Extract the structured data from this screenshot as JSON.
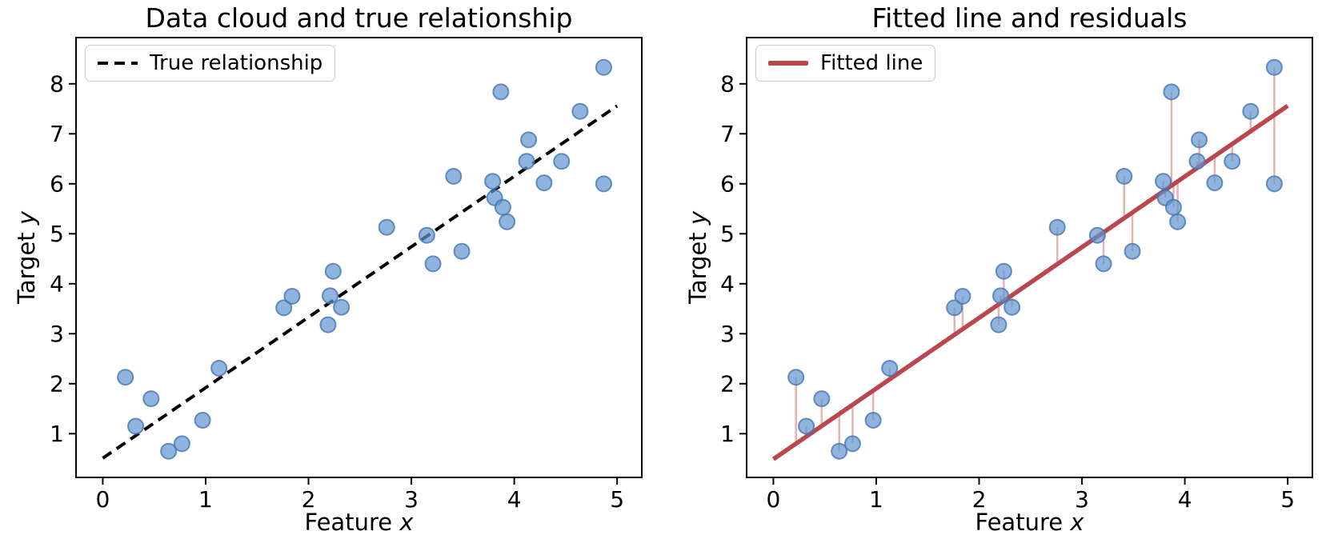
{
  "figure": {
    "background": "#ffffff",
    "marker_fill": "rgba(96,148,208,0.70)",
    "marker_edge": "rgba(70,118,176,0.80)",
    "axis_color": "#000000"
  },
  "chart_data": [
    {
      "type": "scatter",
      "title": "Data cloud and true relationship",
      "xlabel": "Feature x",
      "ylabel": "Target y",
      "xlabel_parts": {
        "text": "Feature ",
        "var": "x"
      },
      "ylabel_parts": {
        "text": "Target ",
        "var": "y"
      },
      "xlim": [
        -0.26,
        5.24
      ],
      "ylim": [
        0.125,
        8.925
      ],
      "xticks": [
        0,
        1,
        2,
        3,
        4,
        5
      ],
      "yticks": [
        1,
        2,
        3,
        4,
        5,
        6,
        7,
        8
      ],
      "grid": false,
      "legend": {
        "label": "True relationship",
        "position": "upper left",
        "sample": "dashed-black-line"
      },
      "marker_color": "#6094d0",
      "points": [
        [
          0.22,
          2.13
        ],
        [
          0.32,
          1.15
        ],
        [
          0.47,
          1.7
        ],
        [
          0.64,
          0.65
        ],
        [
          0.77,
          0.8
        ],
        [
          0.97,
          1.27
        ],
        [
          1.13,
          2.31
        ],
        [
          1.76,
          3.52
        ],
        [
          1.84,
          3.75
        ],
        [
          2.19,
          3.18
        ],
        [
          2.21,
          3.76
        ],
        [
          2.24,
          4.25
        ],
        [
          2.32,
          3.53
        ],
        [
          2.76,
          5.13
        ],
        [
          3.15,
          4.97
        ],
        [
          3.21,
          4.4
        ],
        [
          3.41,
          6.15
        ],
        [
          3.49,
          4.65
        ],
        [
          3.79,
          6.05
        ],
        [
          3.81,
          5.72
        ],
        [
          3.87,
          7.84
        ],
        [
          3.89,
          5.53
        ],
        [
          3.93,
          5.24
        ],
        [
          4.12,
          6.45
        ],
        [
          4.14,
          6.88
        ],
        [
          4.29,
          6.02
        ],
        [
          4.46,
          6.45
        ],
        [
          4.64,
          7.45
        ],
        [
          4.87,
          8.33
        ],
        [
          4.87,
          6.0
        ]
      ],
      "line": {
        "label": "True relationship",
        "style": "dashed",
        "color": "#000000",
        "slope": 1.41,
        "intercept": 0.51,
        "x_range": [
          0,
          5
        ]
      }
    },
    {
      "type": "scatter",
      "title": "Fitted line and residuals",
      "xlabel": "Feature x",
      "ylabel": "Target y",
      "xlabel_parts": {
        "text": "Feature ",
        "var": "x"
      },
      "ylabel_parts": {
        "text": "Target ",
        "var": "y"
      },
      "xlim": [
        -0.26,
        5.24
      ],
      "ylim": [
        0.125,
        8.925
      ],
      "xticks": [
        0,
        1,
        2,
        3,
        4,
        5
      ],
      "yticks": [
        1,
        2,
        3,
        4,
        5,
        6,
        7,
        8
      ],
      "grid": false,
      "legend": {
        "label": "Fitted line",
        "position": "upper left",
        "sample": "solid-red-line"
      },
      "marker_color": "#6094d0",
      "points": [
        [
          0.22,
          2.13
        ],
        [
          0.32,
          1.15
        ],
        [
          0.47,
          1.7
        ],
        [
          0.64,
          0.65
        ],
        [
          0.77,
          0.8
        ],
        [
          0.97,
          1.27
        ],
        [
          1.13,
          2.31
        ],
        [
          1.76,
          3.52
        ],
        [
          1.84,
          3.75
        ],
        [
          2.19,
          3.18
        ],
        [
          2.21,
          3.76
        ],
        [
          2.24,
          4.25
        ],
        [
          2.32,
          3.53
        ],
        [
          2.76,
          5.13
        ],
        [
          3.15,
          4.97
        ],
        [
          3.21,
          4.4
        ],
        [
          3.41,
          6.15
        ],
        [
          3.49,
          4.65
        ],
        [
          3.79,
          6.05
        ],
        [
          3.81,
          5.72
        ],
        [
          3.87,
          7.84
        ],
        [
          3.89,
          5.53
        ],
        [
          3.93,
          5.24
        ],
        [
          4.12,
          6.45
        ],
        [
          4.14,
          6.88
        ],
        [
          4.29,
          6.02
        ],
        [
          4.46,
          6.45
        ],
        [
          4.64,
          7.45
        ],
        [
          4.87,
          8.33
        ],
        [
          4.87,
          6.0
        ]
      ],
      "line": {
        "label": "Fitted line",
        "style": "solid",
        "color": "#b9484e",
        "slope": 1.414,
        "intercept": 0.49,
        "x_range": [
          0,
          5
        ]
      },
      "residuals": {
        "show": true,
        "color": "rgba(205,85,85,0.45)",
        "connect_to": "fitted line"
      }
    }
  ]
}
